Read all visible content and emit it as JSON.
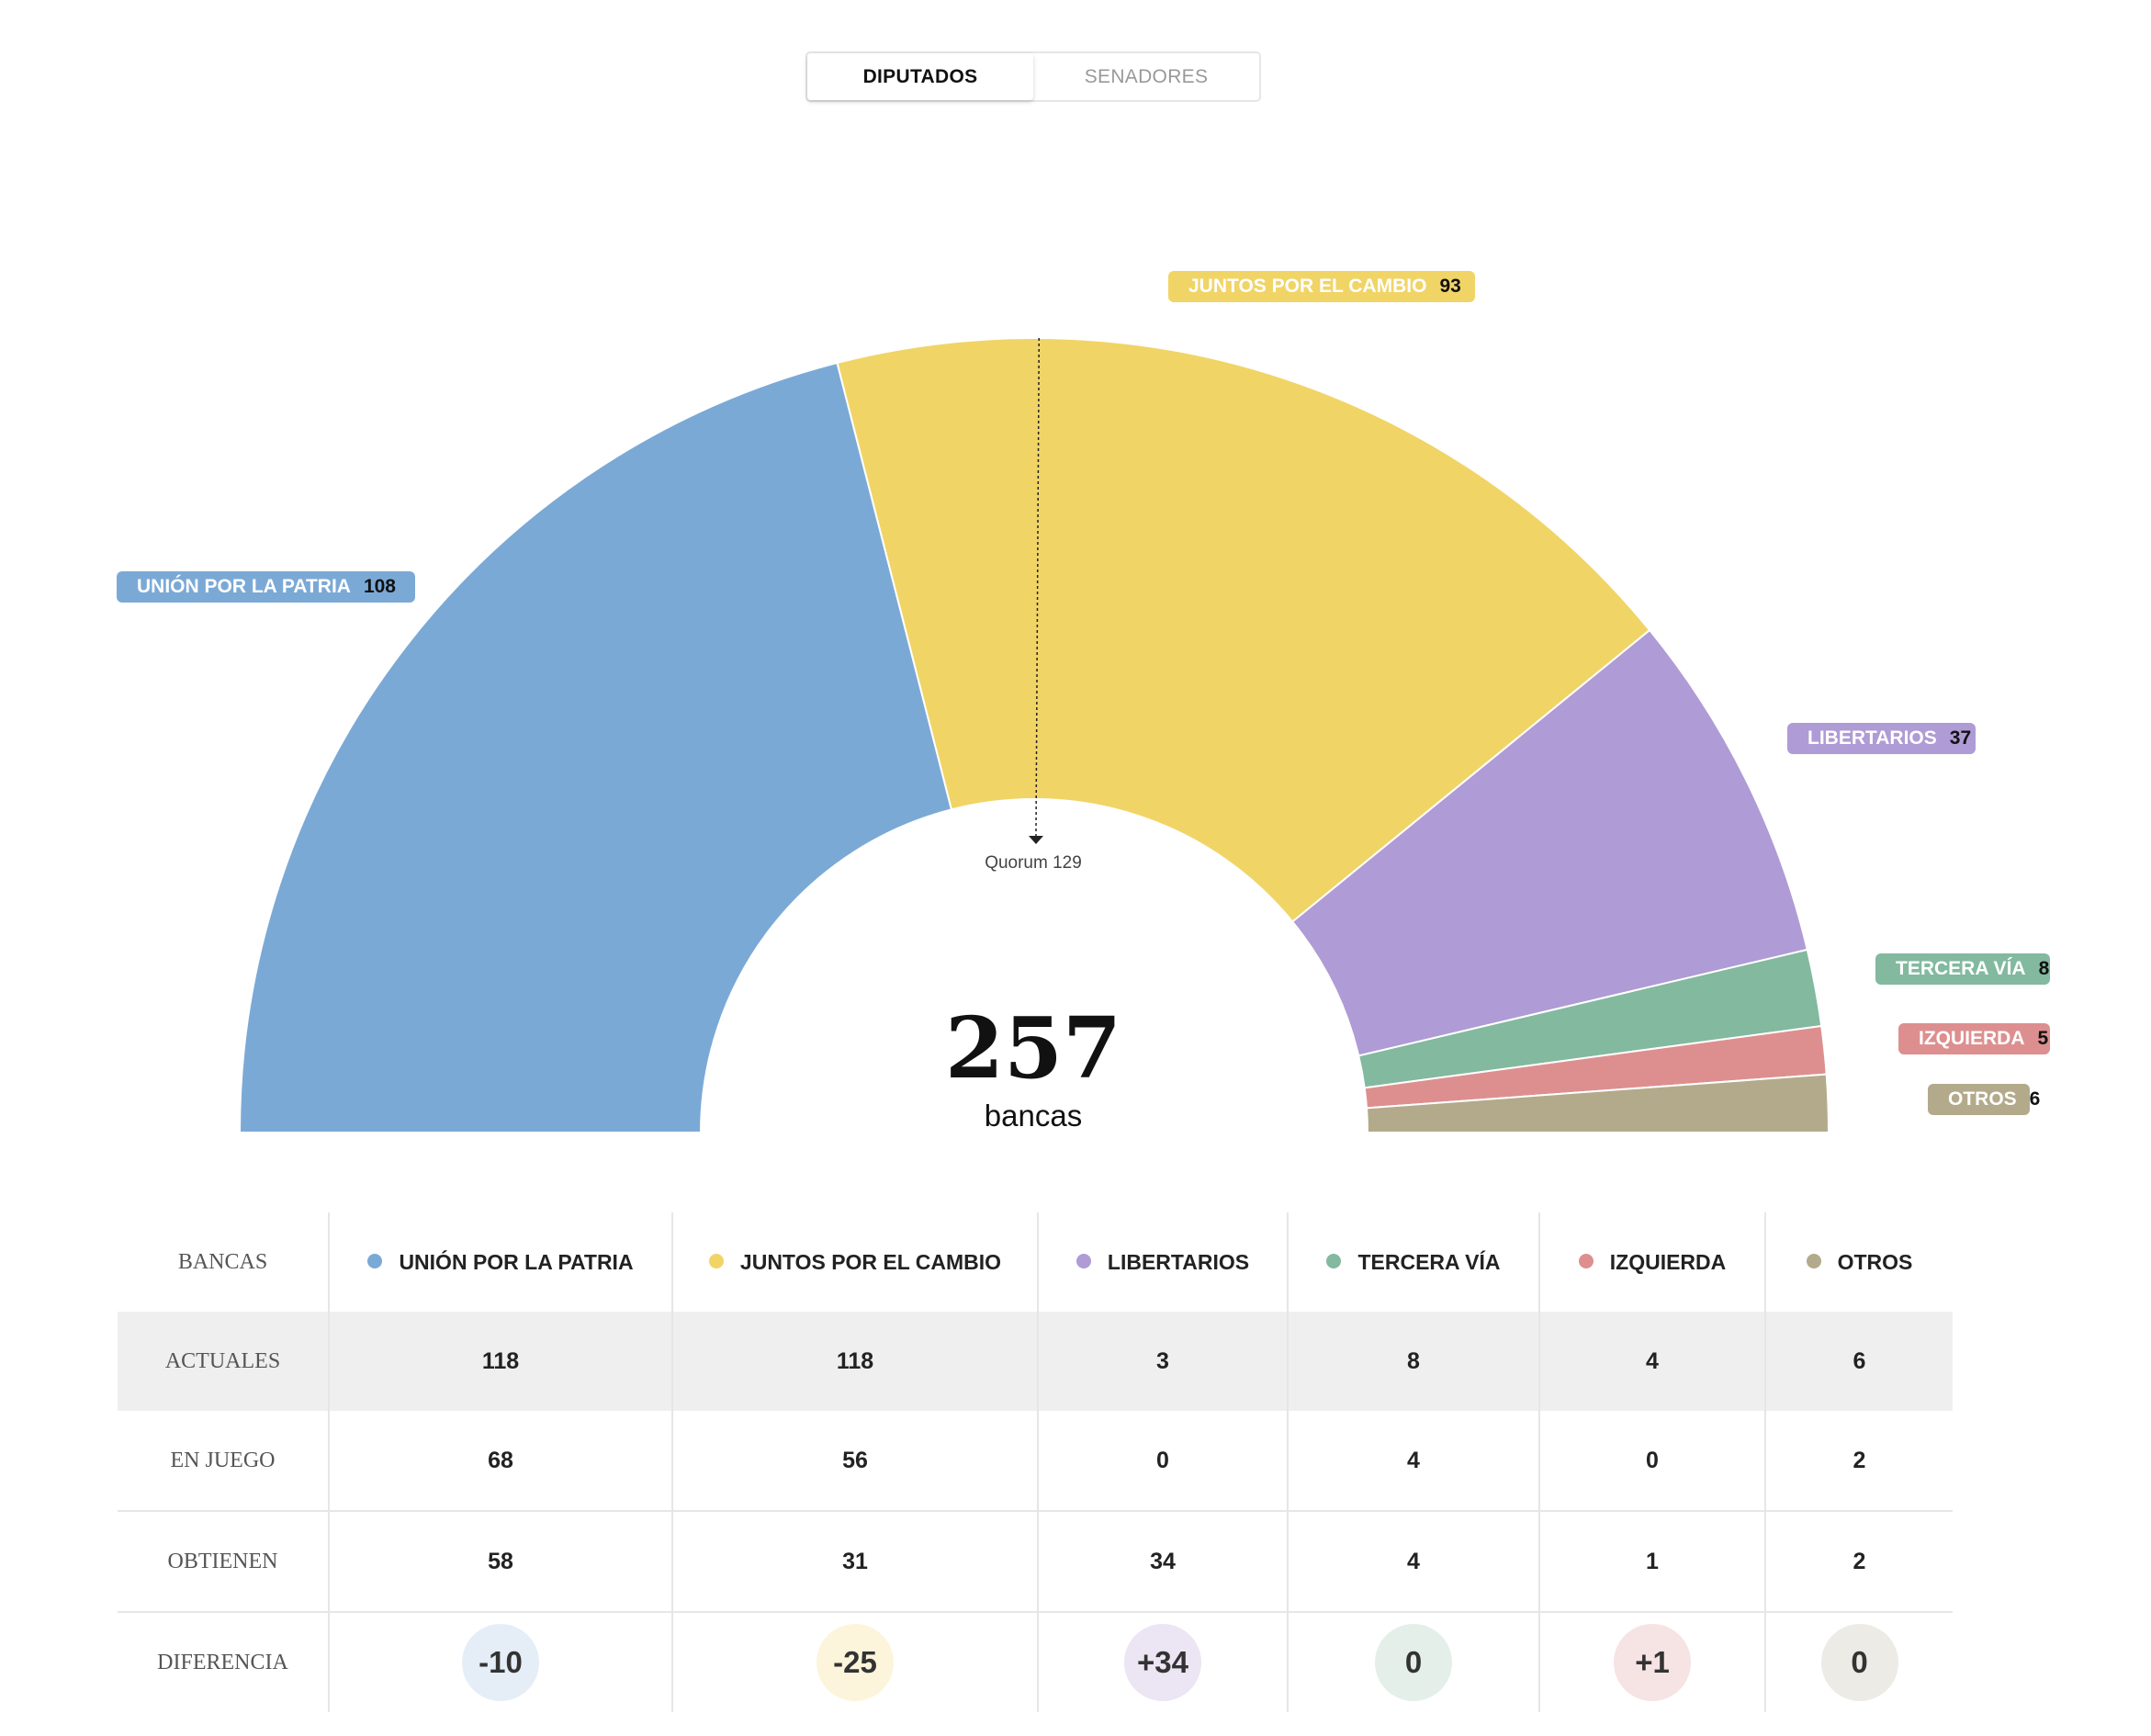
{
  "toggle": {
    "active": "DIPUTADOS",
    "inactive": "SENADORES"
  },
  "center": {
    "total": "257",
    "label": "bancas"
  },
  "quorum_label": "Quorum 129",
  "chart_data": {
    "type": "pie",
    "variant": "semicircle",
    "total": 257,
    "quorum": 129,
    "slices": [
      {
        "name": "UNIÓN POR LA PATRIA",
        "value": 108,
        "color": "#7ba9d6"
      },
      {
        "name": "JUNTOS POR EL CAMBIO",
        "value": 93,
        "color": "#f1d466"
      },
      {
        "name": "LIBERTARIOS",
        "value": 37,
        "color": "#af9bd5"
      },
      {
        "name": "TERCERA VÍA",
        "value": 8,
        "color": "#82b99f"
      },
      {
        "name": "IZQUIERDA",
        "value": 5,
        "color": "#dd8f8f"
      },
      {
        "name": "OTROS",
        "value": 6,
        "color": "#b2aa8a"
      }
    ]
  },
  "table": {
    "corner": "BANCAS",
    "parties": [
      {
        "name": "UNIÓN POR LA PATRIA",
        "color": "#7ba9d6",
        "diff_bg": "#e5eef7"
      },
      {
        "name": "JUNTOS POR EL CAMBIO",
        "color": "#f1d466",
        "diff_bg": "#fcf5db"
      },
      {
        "name": "LIBERTARIOS",
        "color": "#af9bd5",
        "diff_bg": "#ebe5f4"
      },
      {
        "name": "TERCERA VÍA",
        "color": "#82b99f",
        "diff_bg": "#e4efe9"
      },
      {
        "name": "IZQUIERDA",
        "color": "#dd8f8f",
        "diff_bg": "#f6e3e3"
      },
      {
        "name": "OTROS",
        "color": "#b2aa8a",
        "diff_bg": "#ecebe6"
      }
    ],
    "rows": [
      {
        "key": "actuales",
        "label": "ACTUALES",
        "values": [
          "118",
          "118",
          "3",
          "8",
          "4",
          "6"
        ]
      },
      {
        "key": "enjuego",
        "label": "EN JUEGO",
        "values": [
          "68",
          "56",
          "0",
          "4",
          "0",
          "2"
        ]
      },
      {
        "key": "obtienen",
        "label": "OBTIENEN",
        "values": [
          "58",
          "31",
          "34",
          "4",
          "1",
          "2"
        ]
      },
      {
        "key": "diferencia",
        "label": "DIFERENCIA",
        "values": [
          "-10",
          "-25",
          "+34",
          "0",
          "+1",
          "0"
        ]
      }
    ]
  }
}
